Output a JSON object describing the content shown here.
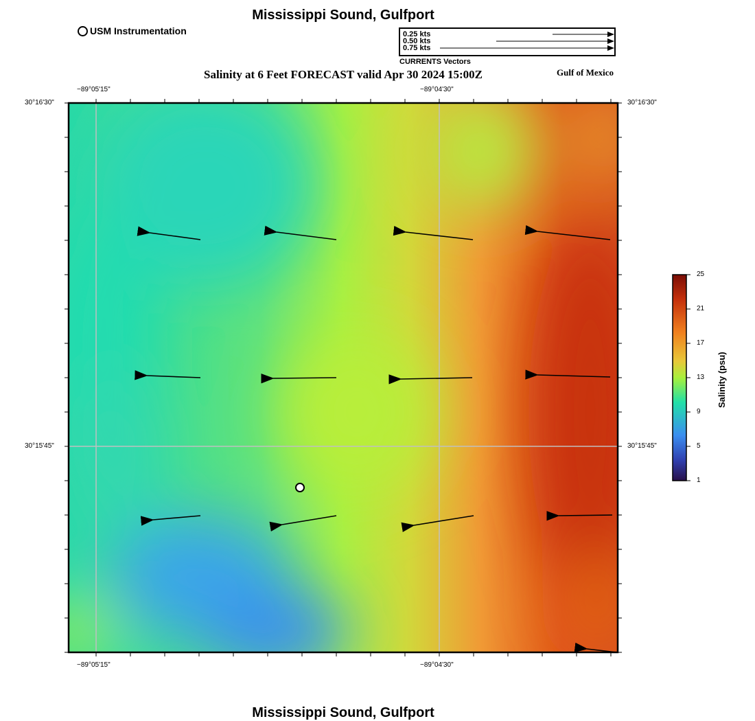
{
  "title": "Mississippi Sound, Gulfport",
  "footer_title": "Mississippi Sound, Gulfport",
  "instrument_legend": "USM Instrumentation",
  "subtitle": "Salinity at 6 Feet FORECAST valid Apr 30 2024 15:00Z",
  "region_label": "Gulf of Mexico",
  "vector_legend": {
    "caption": "CURRENTS Vectors",
    "entries": [
      {
        "label": "0.25 kts",
        "speed": 0.25
      },
      {
        "label": "0.50 kts",
        "speed": 0.5
      },
      {
        "label": "0.75 kts",
        "speed": 0.75
      }
    ]
  },
  "axes": {
    "lon_ticks": [
      "−89°05'15\"",
      "−89°04'30\""
    ],
    "lat_ticks": [
      "30°16'30\"",
      "30°15'45\""
    ]
  },
  "colorbar": {
    "title": "Salinity (psu)",
    "ticks": [
      "25",
      "21",
      "17",
      "13",
      "9",
      "5",
      "1"
    ],
    "min": 1,
    "max": 25
  },
  "colors": {
    "frame": "#000000",
    "grid": "#c0c0c0"
  }
}
